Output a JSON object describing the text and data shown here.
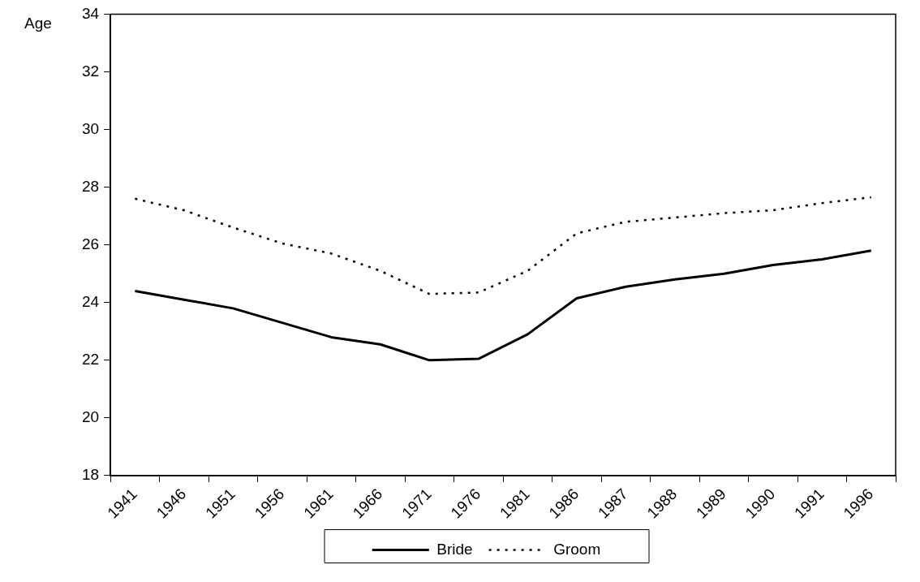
{
  "chart_data": {
    "type": "line",
    "ylabel": "Age",
    "categories": [
      "1941",
      "1946",
      "1951",
      "1956",
      "1961",
      "1966",
      "1971",
      "1976",
      "1981",
      "1986",
      "1987",
      "1988",
      "1989",
      "1990",
      "1991",
      "1996"
    ],
    "series": [
      {
        "name": "Bride",
        "color": "#000000",
        "line_style": "solid",
        "values": [
          24.4,
          24.1,
          23.8,
          23.3,
          22.8,
          22.55,
          22.0,
          22.05,
          22.9,
          24.15,
          24.55,
          24.8,
          25.0,
          25.3,
          25.5,
          25.8
        ]
      },
      {
        "name": "Groom",
        "color": "#000000",
        "line_style": "dotted",
        "values": [
          27.6,
          27.2,
          26.6,
          26.05,
          25.7,
          25.1,
          24.3,
          24.35,
          25.1,
          26.4,
          26.8,
          26.95,
          27.1,
          27.2,
          27.45,
          27.65
        ]
      }
    ],
    "ylim": [
      18,
      34
    ],
    "yticks": [
      18,
      20,
      22,
      24,
      26,
      28,
      30,
      32,
      34
    ],
    "grid": false,
    "legend": "bottom",
    "marker": "none"
  }
}
